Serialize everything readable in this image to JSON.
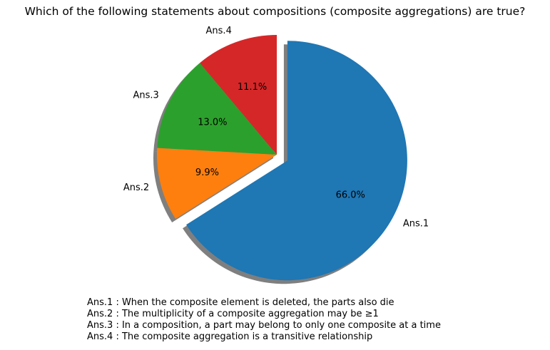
{
  "chart_data": {
    "type": "pie",
    "title": "Which of the following statements about compositions (composite aggregations) are true?",
    "start_angle_deg": 90,
    "direction": "clockwise",
    "shadow": true,
    "slices": [
      {
        "label": "Ans.1",
        "value": 66.0,
        "pct_label": "66.0%",
        "color": "#1f77b4",
        "exploded": true
      },
      {
        "label": "Ans.2",
        "value": 9.9,
        "pct_label": "9.9%",
        "color": "#ff7f0e",
        "exploded": false
      },
      {
        "label": "Ans.3",
        "value": 13.0,
        "pct_label": "13.0%",
        "color": "#2ca02c",
        "exploded": false
      },
      {
        "label": "Ans.4",
        "value": 11.1,
        "pct_label": "11.1%",
        "color": "#d62728",
        "exploded": false
      }
    ],
    "legend": [
      "Ans.1 : When the composite element is deleted, the parts also die",
      "Ans.2 : The multiplicity of a composite aggregation may be ≥1",
      "Ans.3 : In a composition, a part may belong to only one composite at a time",
      "Ans.4 : The composite aggregation is a transitive relationship"
    ]
  }
}
